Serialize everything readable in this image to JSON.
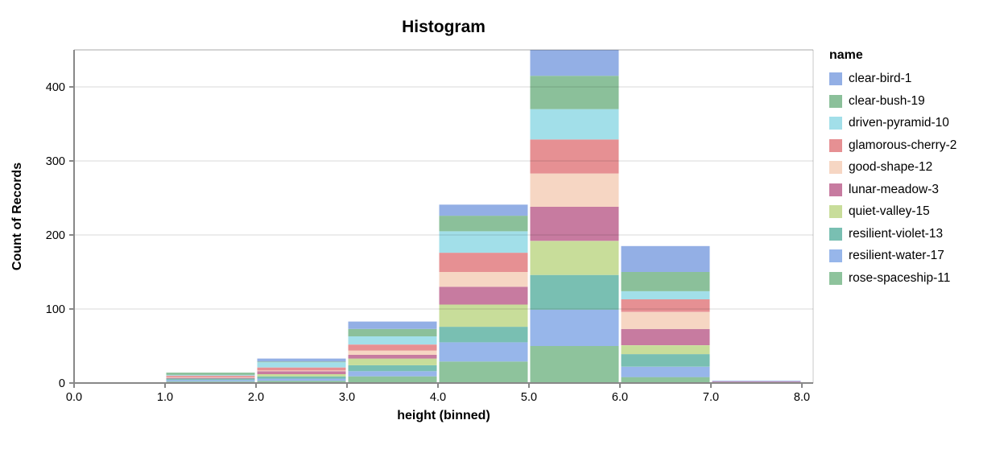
{
  "title": "Histogram",
  "axes": {
    "x": {
      "title": "height (binned)",
      "tick_labels": [
        "0.0",
        "1.0",
        "2.0",
        "3.0",
        "4.0",
        "5.0",
        "6.0",
        "7.0",
        "8.0"
      ],
      "tick_values": [
        0,
        1,
        2,
        3,
        4,
        5,
        6,
        7,
        8
      ]
    },
    "y": {
      "title": "Count of Records",
      "tick_labels": [
        "0",
        "100",
        "200",
        "300",
        "400"
      ],
      "tick_values": [
        0,
        100,
        200,
        300,
        400
      ]
    }
  },
  "legend": {
    "title": "name",
    "items": [
      {
        "label": "clear-bird-1",
        "color": "#93afe5"
      },
      {
        "label": "clear-bush-19",
        "color": "#8bc09a"
      },
      {
        "label": "driven-pyramid-10",
        "color": "#a2dfe9"
      },
      {
        "label": "glamorous-cherry-2",
        "color": "#e69093"
      },
      {
        "label": "good-shape-12",
        "color": "#f6d6c3"
      },
      {
        "label": "lunar-meadow-3",
        "color": "#c77ba0"
      },
      {
        "label": "quiet-valley-15",
        "color": "#c8dd9a"
      },
      {
        "label": "resilient-violet-13",
        "color": "#79bfb2"
      },
      {
        "label": "resilient-water-17",
        "color": "#97b6ea"
      },
      {
        "label": "rose-spaceship-11",
        "color": "#8ec39c"
      }
    ]
  },
  "chart_data": {
    "type": "bar",
    "stacked": true,
    "title": "Histogram",
    "xlabel": "height (binned)",
    "ylabel": "Count of Records",
    "bin_edges": [
      0,
      1,
      2,
      3,
      4,
      5,
      6,
      7,
      8
    ],
    "xlim": [
      0,
      8
    ],
    "ylim": [
      0,
      450
    ],
    "yticks": [
      0,
      100,
      200,
      300,
      400
    ],
    "grid": true,
    "legend_position": "right",
    "stack_order": "first-series-on-top",
    "series": [
      {
        "name": "clear-bird-1",
        "color": "#93afe5",
        "values": [
          0,
          0,
          4,
          10,
          15,
          38,
          35,
          1
        ]
      },
      {
        "name": "clear-bush-19",
        "color": "#8bc09a",
        "values": [
          0,
          3,
          1,
          10,
          21,
          45,
          26,
          0
        ]
      },
      {
        "name": "driven-pyramid-10",
        "color": "#a2dfe9",
        "values": [
          0,
          1,
          7,
          11,
          29,
          41,
          11,
          0
        ]
      },
      {
        "name": "glamorous-cherry-2",
        "color": "#e69093",
        "values": [
          0,
          2,
          4,
          8,
          26,
          46,
          17,
          0
        ]
      },
      {
        "name": "good-shape-12",
        "color": "#f6d6c3",
        "values": [
          0,
          1,
          1,
          6,
          20,
          45,
          23,
          0
        ]
      },
      {
        "name": "lunar-meadow-3",
        "color": "#c77ba0",
        "values": [
          0,
          1,
          4,
          5,
          24,
          46,
          22,
          1
        ]
      },
      {
        "name": "quiet-valley-15",
        "color": "#c8dd9a",
        "values": [
          1,
          0,
          3,
          9,
          30,
          46,
          12,
          0
        ]
      },
      {
        "name": "resilient-violet-13",
        "color": "#79bfb2",
        "values": [
          0,
          2,
          3,
          8,
          21,
          47,
          17,
          0
        ]
      },
      {
        "name": "resilient-water-17",
        "color": "#97b6ea",
        "values": [
          0,
          2,
          3,
          7,
          26,
          49,
          14,
          1
        ]
      },
      {
        "name": "rose-spaceship-11",
        "color": "#8ec39c",
        "values": [
          0,
          2,
          3,
          9,
          29,
          50,
          8,
          0
        ]
      }
    ],
    "bin_totals": [
      1,
      14,
      33,
      83,
      241,
      453,
      185,
      3
    ]
  },
  "colors": {
    "axis": "#888888",
    "grid_over_white": "#dddddd",
    "text": "#000000",
    "background": "#ffffff"
  }
}
